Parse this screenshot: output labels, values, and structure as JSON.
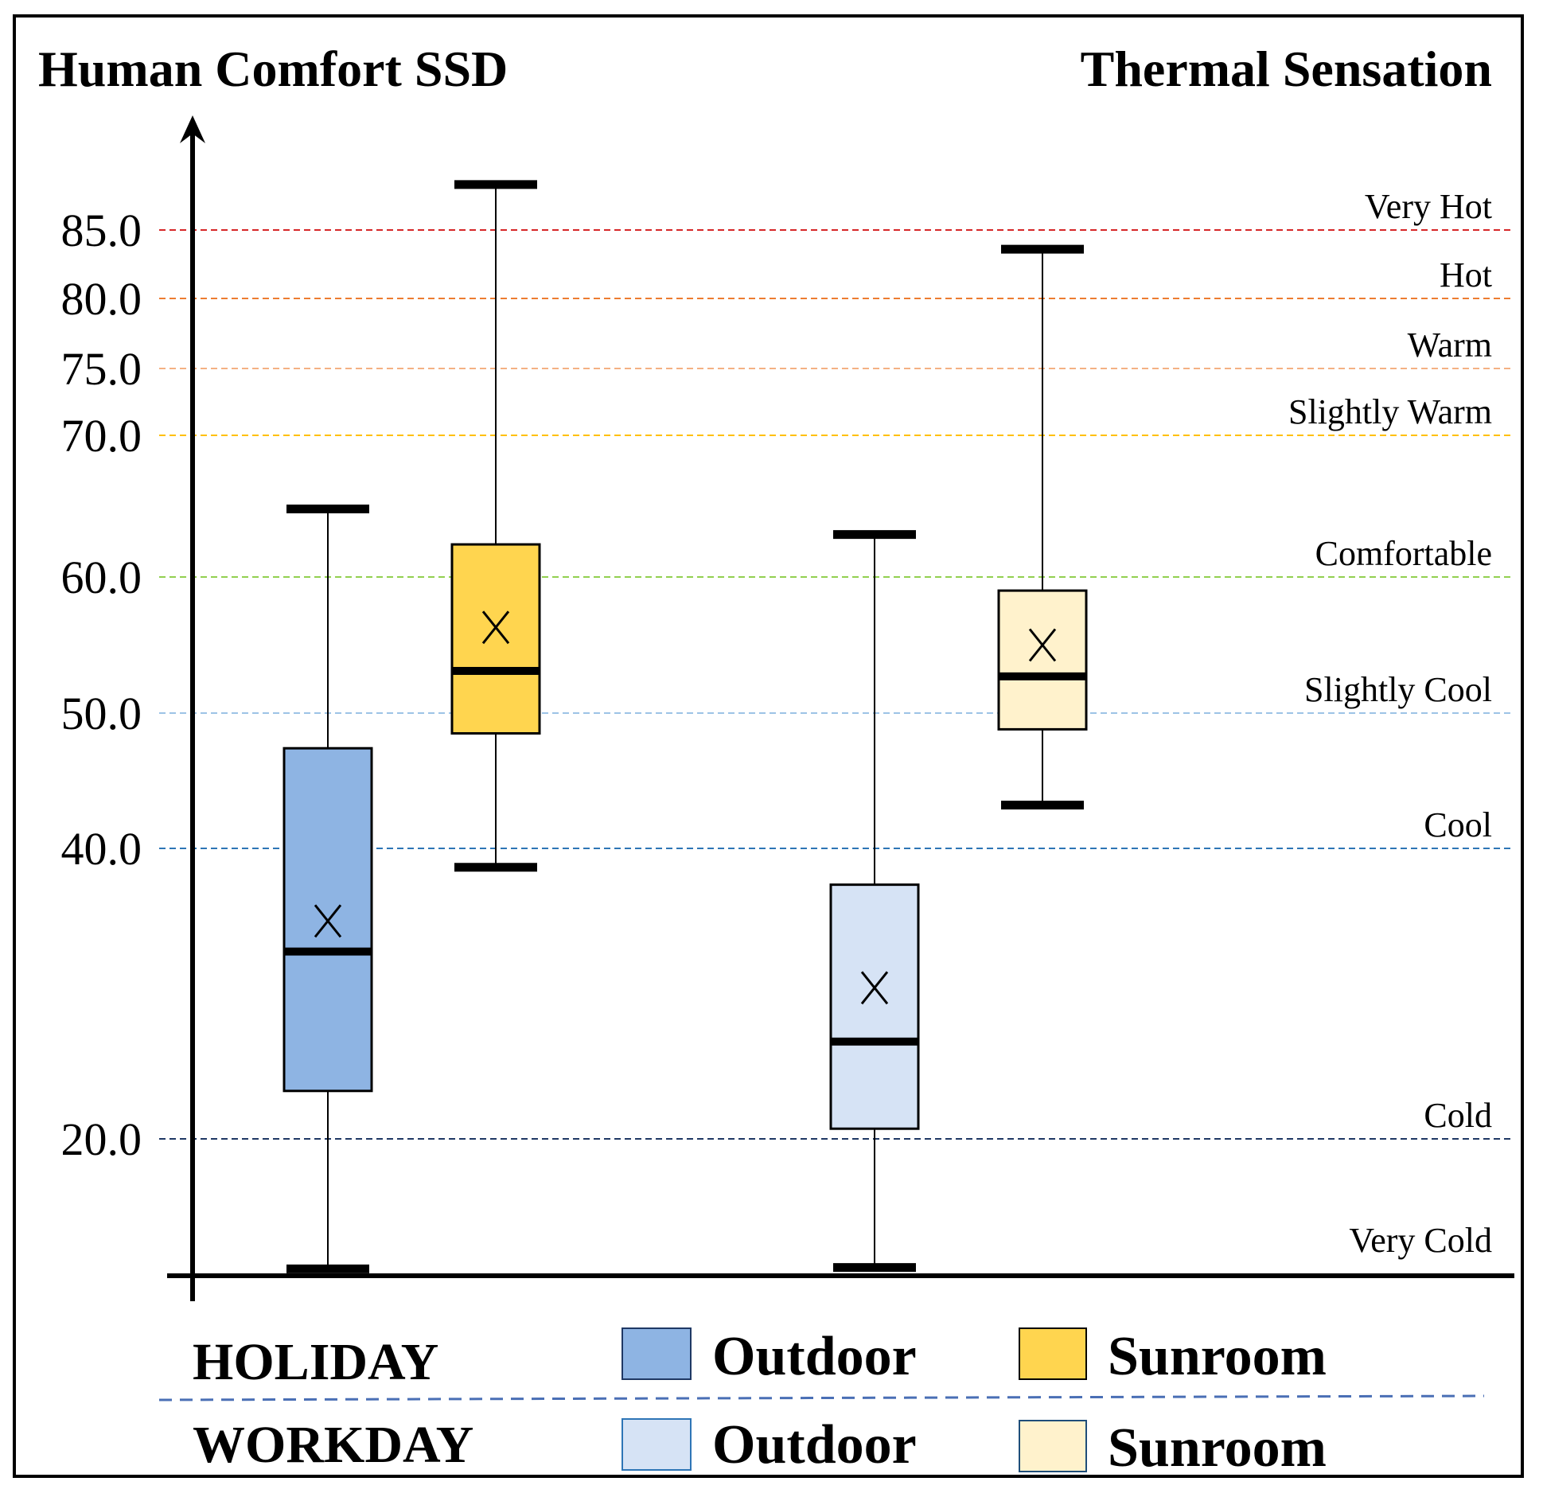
{
  "chart_data": {
    "type": "box",
    "title_left": "Human Comfort SSD",
    "title_right": "Thermal Sensation",
    "y_ticks": [
      20.0,
      40.0,
      50.0,
      60.0,
      70.0,
      75.0,
      80.0,
      85.0
    ],
    "y_tick_labels": [
      "20.0",
      "40.0",
      "50.0",
      "60.0",
      "70.0",
      "75.0",
      "80.0",
      "85.0"
    ],
    "thresholds": [
      {
        "value": 85.0,
        "label": "Very Hot",
        "color": "#d62728"
      },
      {
        "value": 80.0,
        "label": "Hot",
        "color": "#ed7d31"
      },
      {
        "value": 75.0,
        "label": "Warm",
        "color": "#f4b183"
      },
      {
        "value": 70.0,
        "label": "Slightly Warm",
        "color": "#ffc000"
      },
      {
        "value": 60.0,
        "label": "Comfortable",
        "color": "#92d050"
      },
      {
        "value": 50.0,
        "label": "Slightly Cool",
        "color": "#9dc3e6"
      },
      {
        "value": 40.0,
        "label": "Cool",
        "color": "#2e75b6"
      },
      {
        "value": 20.0,
        "label": "Cold",
        "color": "#1f3864"
      }
    ],
    "bottom_zone_label": "Very Cold",
    "series": [
      {
        "group": "HOLIDAY",
        "location": "Outdoor",
        "color": "#8eb4e3",
        "whisker_low": 10.5,
        "q1": 23.3,
        "median": 32.9,
        "mean": 35.0,
        "q3": 47.4,
        "whisker_high": 64.8
      },
      {
        "group": "HOLIDAY",
        "location": "Sunroom",
        "color": "#ffd54f",
        "whisker_low": 38.7,
        "q1": 48.5,
        "median": 53.1,
        "mean": 56.3,
        "q3": 62.3,
        "whisker_high": 88.4
      },
      {
        "group": "WORKDAY",
        "location": "Outdoor",
        "color": "#d6e3f5",
        "whisker_low": 10.6,
        "q1": 20.7,
        "median": 26.7,
        "mean": 30.4,
        "q3": 37.5,
        "whisker_high": 63.0
      },
      {
        "group": "WORKDAY",
        "location": "Sunroom",
        "color": "#fff2cc",
        "whisker_low": 43.2,
        "q1": 48.8,
        "median": 52.7,
        "mean": 55.0,
        "q3": 59.0,
        "whisker_high": 83.6
      }
    ]
  },
  "legend": {
    "holiday_label": "HOLIDAY",
    "workday_label": "WORKDAY",
    "outdoor_label": "Outdoor",
    "sunroom_label": "Sunroom"
  }
}
